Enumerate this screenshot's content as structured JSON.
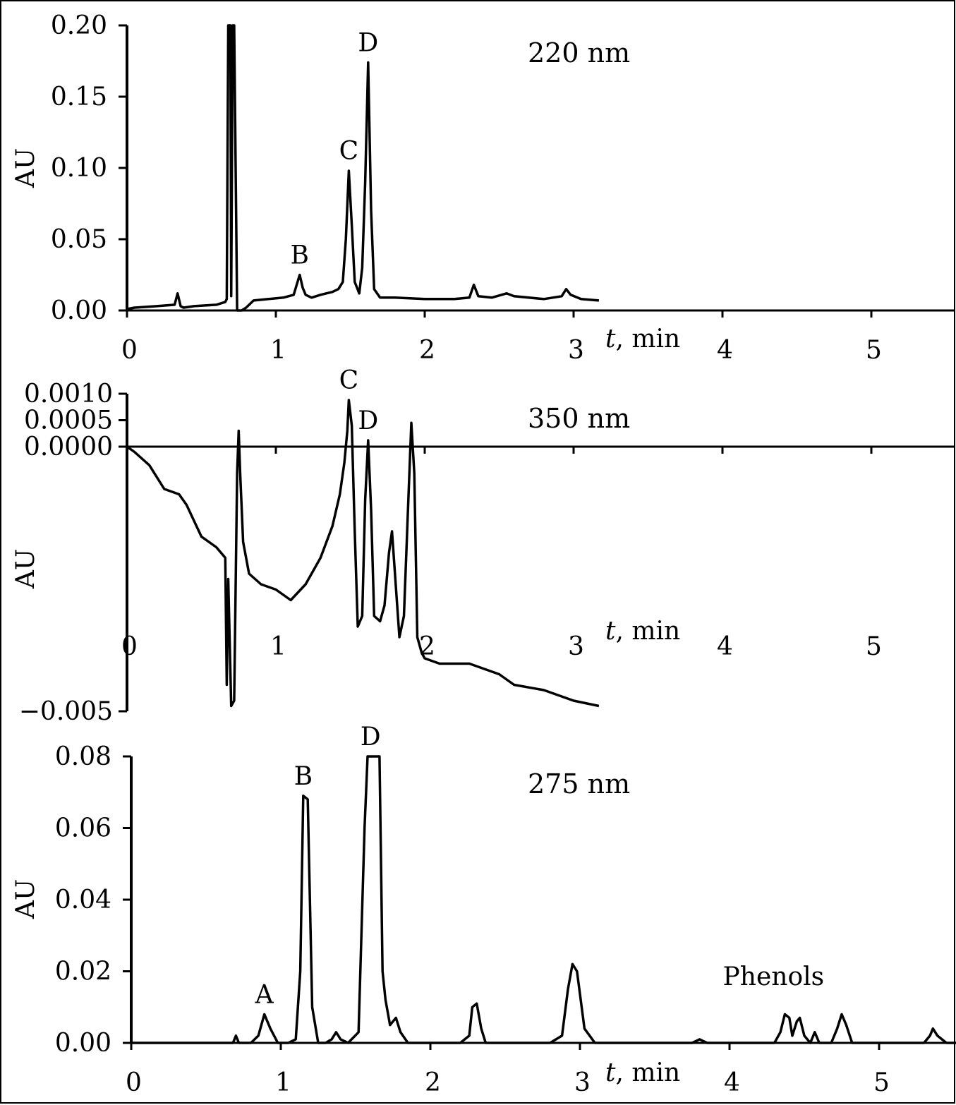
{
  "chart_data": [
    {
      "type": "line",
      "annotation": "220 nm",
      "xlabel_italic": "t",
      "xlabel_rest": ", min",
      "ylabel": "AU",
      "xlim": [
        0,
        5.6
      ],
      "ylim": [
        0,
        0.2
      ],
      "x_ticks": [
        0,
        1,
        2,
        3,
        4,
        5
      ],
      "x_tick_labels": [
        "0",
        "1",
        "2",
        "3",
        "4",
        "5"
      ],
      "y_ticks": [
        0,
        0.05,
        0.1,
        0.15,
        0.2
      ],
      "y_tick_labels": [
        "0.00",
        "0.05",
        "0.10",
        "0.15",
        "0.20"
      ],
      "peak_labels": [
        {
          "text": "B",
          "x": 1.16,
          "y": 0.025
        },
        {
          "text": "C",
          "x": 1.49,
          "y": 0.098
        },
        {
          "text": "D",
          "x": 1.62,
          "y": 0.174
        }
      ],
      "series": [
        {
          "x": [
            0.0,
            0.05,
            0.2,
            0.32,
            0.34,
            0.36,
            0.38,
            0.45,
            0.6,
            0.66,
            0.67,
            0.68,
            0.695,
            0.7,
            0.71,
            0.72,
            0.74,
            0.77,
            0.8,
            0.85,
            0.95,
            1.05,
            1.12,
            1.14,
            1.16,
            1.18,
            1.2,
            1.24,
            1.3,
            1.38,
            1.42,
            1.45,
            1.47,
            1.49,
            1.51,
            1.53,
            1.56,
            1.58,
            1.6,
            1.62,
            1.64,
            1.66,
            1.7,
            1.8,
            2.0,
            2.2,
            2.3,
            2.33,
            2.36,
            2.45,
            2.55,
            2.6,
            2.8,
            2.92,
            2.95,
            2.98,
            3.05,
            3.17
          ],
          "y": [
            0.001,
            0.002,
            0.003,
            0.004,
            0.012,
            0.003,
            0.002,
            0.003,
            0.004,
            0.006,
            0.008,
            0.2,
            0.2,
            0.01,
            0.2,
            0.2,
            0.0,
            0.0,
            0.002,
            0.007,
            0.008,
            0.009,
            0.011,
            0.018,
            0.025,
            0.016,
            0.011,
            0.009,
            0.011,
            0.013,
            0.015,
            0.02,
            0.05,
            0.098,
            0.06,
            0.02,
            0.012,
            0.03,
            0.09,
            0.174,
            0.07,
            0.015,
            0.009,
            0.009,
            0.008,
            0.008,
            0.009,
            0.018,
            0.01,
            0.009,
            0.012,
            0.01,
            0.008,
            0.01,
            0.015,
            0.011,
            0.008,
            0.007
          ]
        }
      ]
    },
    {
      "type": "line",
      "annotation": "350 nm",
      "xlabel_italic": "t",
      "xlabel_rest": ", min",
      "ylabel": "AU",
      "xlim": [
        0,
        5.6
      ],
      "ylim": [
        -0.005,
        0.001
      ],
      "x_ticks": [
        0,
        1,
        2,
        3,
        4,
        5
      ],
      "x_tick_labels": [
        "0",
        "1",
        "2",
        "3",
        "4",
        "5"
      ],
      "y_ticks": [
        -0.005,
        0.0,
        0.0005,
        0.001
      ],
      "y_tick_labels": [
        "−0.005",
        "0.0000",
        "0.0005",
        "0.0010"
      ],
      "peak_labels": [
        {
          "text": "C",
          "x": 1.49,
          "y": 0.00088
        },
        {
          "text": "D",
          "x": 1.62,
          "y": 0.00012
        }
      ],
      "series": [
        {
          "x": [
            0.0,
            0.05,
            0.15,
            0.25,
            0.35,
            0.4,
            0.5,
            0.6,
            0.66,
            0.67,
            0.68,
            0.7,
            0.72,
            0.74,
            0.75,
            0.76,
            0.78,
            0.82,
            0.9,
            1.0,
            1.1,
            1.2,
            1.3,
            1.38,
            1.43,
            1.46,
            1.48,
            1.49,
            1.51,
            1.53,
            1.55,
            1.58,
            1.6,
            1.62,
            1.64,
            1.66,
            1.7,
            1.73,
            1.76,
            1.78,
            1.8,
            1.83,
            1.86,
            1.89,
            1.91,
            1.93,
            1.95,
            1.98,
            2.0,
            2.1,
            2.3,
            2.5,
            2.6,
            2.8,
            3.0,
            3.17
          ],
          "y": [
            0.0,
            -0.0001,
            -0.00035,
            -0.0008,
            -0.0009,
            -0.0011,
            -0.0017,
            -0.0019,
            -0.0021,
            -0.0045,
            -0.0025,
            -0.0049,
            -0.0048,
            -0.0005,
            0.0003,
            -0.0005,
            -0.0018,
            -0.0024,
            -0.0026,
            -0.0027,
            -0.0029,
            -0.0026,
            -0.0021,
            -0.0015,
            -0.0009,
            -0.0003,
            0.0003,
            0.00088,
            0.0004,
            -0.0016,
            -0.0034,
            -0.0032,
            -0.001,
            0.00012,
            -0.0012,
            -0.0032,
            -0.0033,
            -0.003,
            -0.002,
            -0.0016,
            -0.0024,
            -0.0036,
            -0.0032,
            -0.001,
            0.00045,
            -0.0005,
            -0.0036,
            -0.0039,
            -0.004,
            -0.0041,
            -0.0041,
            -0.0043,
            -0.0045,
            -0.0046,
            -0.0048,
            -0.0049
          ]
        }
      ]
    },
    {
      "type": "line",
      "annotation": "275 nm",
      "xlabel_italic": "t",
      "xlabel_rest": ", min",
      "ylabel": "AU",
      "xlim": [
        0,
        5.6
      ],
      "ylim": [
        0,
        0.08
      ],
      "x_ticks": [
        0,
        1,
        2,
        3,
        4,
        5
      ],
      "x_tick_labels": [
        "0",
        "1",
        "2",
        "3",
        "4",
        "5"
      ],
      "y_ticks": [
        0,
        0.02,
        0.04,
        0.06,
        0.08
      ],
      "y_tick_labels": [
        "0.00",
        "0.02",
        "0.04",
        "0.06",
        "0.08"
      ],
      "peak_labels": [
        {
          "text": "A",
          "x": 0.89,
          "y": 0.008
        },
        {
          "text": "B",
          "x": 1.15,
          "y": 0.069
        },
        {
          "text": "D",
          "x": 1.6,
          "y": 0.08
        },
        {
          "text": "Phenols",
          "x": 4.38,
          "y": 0.013
        }
      ],
      "series": [
        {
          "x": [
            0.0,
            0.3,
            0.6,
            0.68,
            0.7,
            0.72,
            0.8,
            0.85,
            0.89,
            0.93,
            0.98,
            1.05,
            1.1,
            1.13,
            1.15,
            1.18,
            1.21,
            1.25,
            1.3,
            1.34,
            1.37,
            1.4,
            1.45,
            1.52,
            1.56,
            1.58,
            1.6,
            1.63,
            1.66,
            1.68,
            1.7,
            1.73,
            1.77,
            1.8,
            1.85,
            2.0,
            2.2,
            2.26,
            2.28,
            2.31,
            2.34,
            2.37,
            2.5,
            2.8,
            2.88,
            2.92,
            2.95,
            2.98,
            3.03,
            3.1,
            3.5,
            3.75,
            3.8,
            3.85,
            4.0,
            4.3,
            4.34,
            4.37,
            4.4,
            4.42,
            4.45,
            4.47,
            4.5,
            4.54,
            4.57,
            4.6,
            4.68,
            4.72,
            4.75,
            4.78,
            4.82,
            5.0,
            5.3,
            5.34,
            5.36,
            5.39,
            5.45,
            5.6
          ],
          "y": [
            0.0,
            0.0,
            0.0,
            0.0,
            0.002,
            0.0,
            0.0,
            0.002,
            0.008,
            0.004,
            0.0,
            0.0,
            0.001,
            0.02,
            0.069,
            0.068,
            0.01,
            0.0,
            0.0,
            0.001,
            0.003,
            0.001,
            0.0,
            0.003,
            0.06,
            0.08,
            0.08,
            0.08,
            0.08,
            0.02,
            0.012,
            0.005,
            0.007,
            0.003,
            0.0,
            0.0,
            0.0,
            0.002,
            0.01,
            0.011,
            0.004,
            0.0,
            0.0,
            0.0,
            0.002,
            0.015,
            0.022,
            0.02,
            0.004,
            0.0,
            0.0,
            0.0,
            0.001,
            0.0,
            0.0,
            0.0,
            0.003,
            0.008,
            0.007,
            0.002,
            0.006,
            0.007,
            0.002,
            0.0,
            0.003,
            0.0,
            0.0,
            0.004,
            0.008,
            0.005,
            0.0,
            0.0,
            0.0,
            0.002,
            0.004,
            0.002,
            0.0,
            0.0
          ]
        }
      ]
    }
  ]
}
